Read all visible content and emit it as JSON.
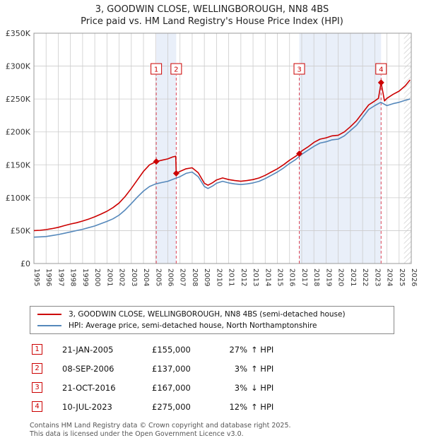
{
  "header": {
    "title": "3, GOODWIN CLOSE, WELLINGBOROUGH, NN8 4BS",
    "subtitle": "Price paid vs. HM Land Registry's House Price Index (HPI)"
  },
  "chart_data": {
    "type": "line",
    "x_range": [
      1995,
      2026
    ],
    "y_range": [
      0,
      350000
    ],
    "x_ticks": [
      1995,
      1996,
      1997,
      1998,
      1999,
      2000,
      2001,
      2002,
      2003,
      2004,
      2005,
      2006,
      2007,
      2008,
      2009,
      2010,
      2011,
      2012,
      2013,
      2014,
      2015,
      2016,
      2017,
      2018,
      2019,
      2020,
      2021,
      2022,
      2023,
      2024,
      2025,
      2026
    ],
    "y_ticks": [
      0,
      50000,
      100000,
      150000,
      200000,
      250000,
      300000,
      350000
    ],
    "y_tick_labels": [
      "£0",
      "£50K",
      "£100K",
      "£150K",
      "£200K",
      "£250K",
      "£300K",
      "£350K"
    ],
    "grid": true,
    "legend_position": "bottom",
    "colors": {
      "red": "#cc0000",
      "blue": "#5588bb",
      "band": "#e9eff9",
      "grid": "#cccccc",
      "hatch": "#bbbbbb",
      "sale_line": "#dd4455"
    },
    "ownership_bands": [
      [
        2005.05,
        2006.69
      ],
      [
        2016.8,
        2023.52
      ]
    ],
    "future_band": [
      2025.4,
      2026
    ],
    "sales": [
      {
        "label": "1",
        "x": 2005.05,
        "y": 155000
      },
      {
        "label": "2",
        "x": 2006.69,
        "y": 137000
      },
      {
        "label": "3",
        "x": 2016.8,
        "y": 167000
      },
      {
        "label": "4",
        "x": 2023.52,
        "y": 275000
      }
    ],
    "series": [
      {
        "id": "price-paid",
        "name": "3, GOODWIN CLOSE, WELLINGBOROUGH, NN8 4BS (semi-detached house)",
        "color": "#cc0000",
        "x": [
          1995.0,
          1995.5,
          1996.0,
          1996.5,
          1997.0,
          1997.5,
          1998.0,
          1998.5,
          1999.0,
          1999.5,
          2000.0,
          2000.5,
          2001.0,
          2001.5,
          2002.0,
          2002.5,
          2003.0,
          2003.5,
          2004.0,
          2004.5,
          2005.05,
          2005.5,
          2006.0,
          2006.4,
          2006.65,
          2006.69,
          2007.0,
          2007.5,
          2008.0,
          2008.5,
          2009.0,
          2009.3,
          2009.7,
          2010.0,
          2010.5,
          2011.0,
          2011.5,
          2012.0,
          2012.5,
          2013.0,
          2013.5,
          2014.0,
          2014.5,
          2015.0,
          2015.5,
          2016.0,
          2016.5,
          2016.8,
          2017.0,
          2017.5,
          2018.0,
          2018.5,
          2019.0,
          2019.5,
          2020.0,
          2020.5,
          2021.0,
          2021.5,
          2022.0,
          2022.5,
          2023.0,
          2023.3,
          2023.52,
          2023.8,
          2024.0,
          2024.5,
          2025.0,
          2025.5,
          2025.9
        ],
        "values": [
          50000,
          50500,
          51500,
          53000,
          55000,
          57500,
          60000,
          62000,
          64500,
          67500,
          71000,
          75000,
          79500,
          85000,
          92000,
          102000,
          114000,
          127000,
          140000,
          150000,
          155000,
          157000,
          159000,
          162000,
          163000,
          137000,
          140000,
          144000,
          145500,
          138000,
          122000,
          119000,
          123000,
          127000,
          130000,
          127500,
          126000,
          125000,
          126000,
          127500,
          130000,
          134000,
          139000,
          144000,
          150000,
          157000,
          163000,
          167000,
          171000,
          177000,
          184000,
          189000,
          191000,
          194000,
          195000,
          200000,
          208000,
          217000,
          229000,
          241000,
          247000,
          251000,
          275000,
          247000,
          251000,
          257000,
          262000,
          270000,
          279000
        ]
      },
      {
        "id": "hpi",
        "name": "HPI: Average price, semi-detached house, North Northamptonshire",
        "color": "#5588bb",
        "x": [
          1995.0,
          1995.5,
          1996.0,
          1996.5,
          1997.0,
          1997.5,
          1998.0,
          1998.5,
          1999.0,
          1999.5,
          2000.0,
          2000.5,
          2001.0,
          2001.5,
          2002.0,
          2002.5,
          2003.0,
          2003.5,
          2004.0,
          2004.5,
          2005.0,
          2005.5,
          2006.0,
          2006.5,
          2007.0,
          2007.5,
          2008.0,
          2008.5,
          2009.0,
          2009.3,
          2009.7,
          2010.0,
          2010.5,
          2011.0,
          2011.5,
          2012.0,
          2012.5,
          2013.0,
          2013.5,
          2014.0,
          2014.5,
          2015.0,
          2015.5,
          2016.0,
          2016.5,
          2017.0,
          2017.5,
          2018.0,
          2018.5,
          2019.0,
          2019.5,
          2020.0,
          2020.5,
          2021.0,
          2021.5,
          2022.0,
          2022.5,
          2023.0,
          2023.5,
          2024.0,
          2024.5,
          2025.0,
          2025.5,
          2025.9
        ],
        "values": [
          40000,
          40500,
          41000,
          42500,
          44000,
          46000,
          48000,
          50000,
          52000,
          54500,
          57000,
          60500,
          64000,
          68000,
          73500,
          81500,
          91000,
          101000,
          110000,
          117000,
          121000,
          123000,
          125000,
          128500,
          132000,
          137000,
          139000,
          132000,
          117000,
          114000,
          118000,
          122000,
          125000,
          122500,
          121000,
          120000,
          121000,
          122500,
          125000,
          129000,
          134000,
          139000,
          145000,
          152000,
          158000,
          166000,
          172000,
          178000,
          183000,
          185000,
          188000,
          189000,
          194000,
          202000,
          210000,
          222000,
          234000,
          240000,
          245000,
          240000,
          243000,
          245000,
          248000,
          250000
        ]
      }
    ]
  },
  "legend": {
    "items": [
      {
        "label": "3, GOODWIN CLOSE, WELLINGBOROUGH, NN8 4BS (semi-detached house)",
        "color": "#cc0000"
      },
      {
        "label": "HPI: Average price, semi-detached house, North Northamptonshire",
        "color": "#5588bb"
      }
    ]
  },
  "table": {
    "rows": [
      {
        "n": "1",
        "date": "21-JAN-2005",
        "price": "£155,000",
        "pct": "27%",
        "dir": "↑ HPI"
      },
      {
        "n": "2",
        "date": "08-SEP-2006",
        "price": "£137,000",
        "pct": "3%",
        "dir": "↑ HPI"
      },
      {
        "n": "3",
        "date": "21-OCT-2016",
        "price": "£167,000",
        "pct": "3%",
        "dir": "↓ HPI"
      },
      {
        "n": "4",
        "date": "10-JUL-2023",
        "price": "£275,000",
        "pct": "12%",
        "dir": "↑ HPI"
      }
    ]
  },
  "footer": {
    "line1": "Contains HM Land Registry data © Crown copyright and database right 2025.",
    "line2": "This data is licensed under the Open Government Licence v3.0."
  }
}
